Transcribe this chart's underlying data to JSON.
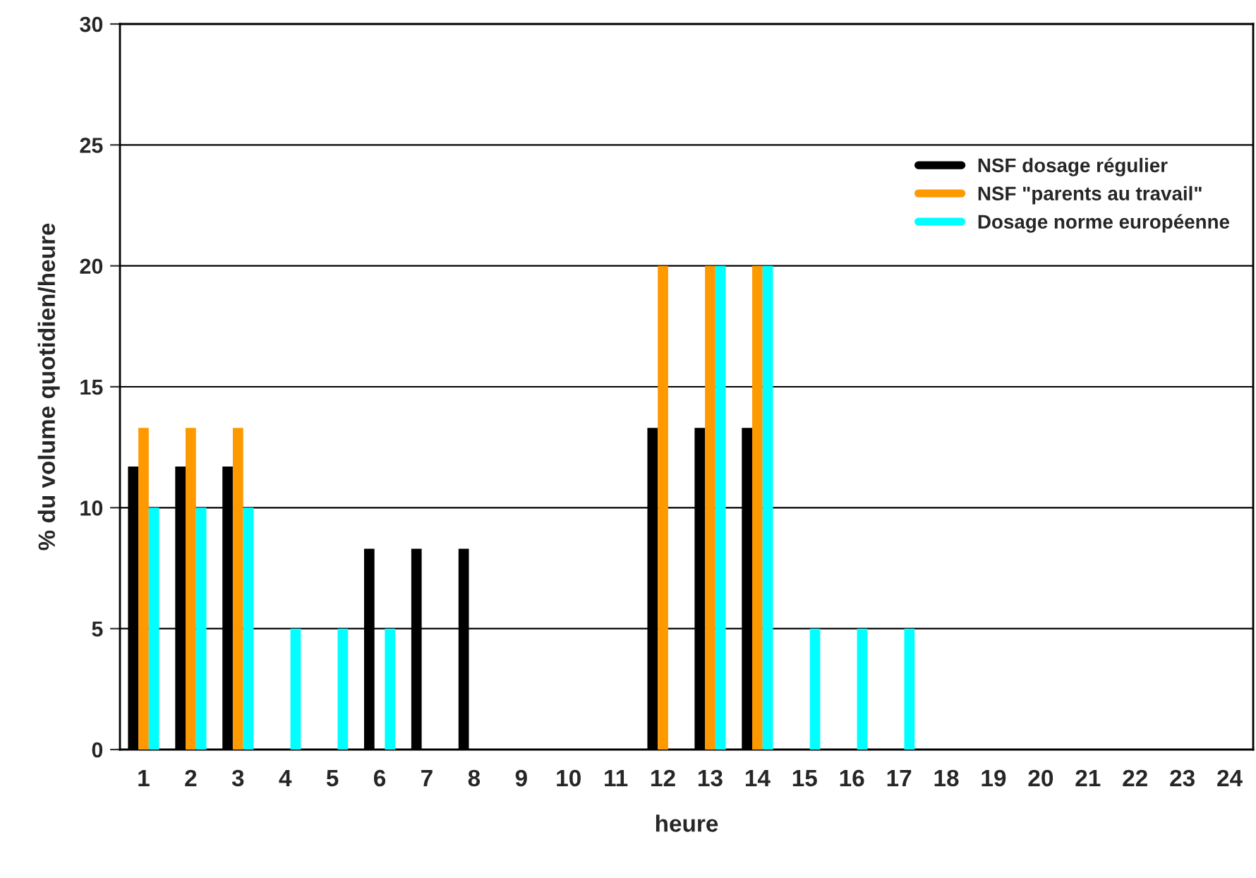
{
  "chart_data": {
    "type": "bar",
    "xlabel": "heure",
    "ylabel": "% du volume quotidien/heure",
    "categories": [
      "1",
      "2",
      "3",
      "4",
      "5",
      "6",
      "7",
      "8",
      "9",
      "10",
      "11",
      "12",
      "13",
      "14",
      "15",
      "16",
      "17",
      "18",
      "19",
      "20",
      "21",
      "22",
      "23",
      "24"
    ],
    "series": [
      {
        "name": "NSF dosage régulier",
        "color": "#000000",
        "values": [
          11.7,
          11.7,
          11.7,
          0,
          0,
          8.3,
          8.3,
          8.3,
          0,
          0,
          0,
          13.3,
          13.3,
          13.3,
          0,
          0,
          0,
          0,
          0,
          0,
          0,
          0,
          0,
          0
        ]
      },
      {
        "name": "NSF \"parents au travail\"",
        "color": "#ff9900",
        "values": [
          13.3,
          13.3,
          13.3,
          0,
          0,
          0,
          0,
          0,
          0,
          0,
          0,
          20,
          20,
          20,
          0,
          0,
          0,
          0,
          0,
          0,
          0,
          0,
          0,
          0
        ]
      },
      {
        "name": "Dosage norme européenne",
        "color": "#00ffff",
        "values": [
          10,
          10,
          10,
          5,
          5,
          5,
          0,
          0,
          0,
          0,
          0,
          0,
          20,
          20,
          5,
          5,
          5,
          0,
          0,
          0,
          0,
          0,
          0,
          0
        ]
      }
    ],
    "ylim": [
      0,
      30
    ],
    "yticks": [
      0,
      5,
      10,
      15,
      20,
      25,
      30
    ],
    "grid": "y",
    "legend": "top right"
  }
}
